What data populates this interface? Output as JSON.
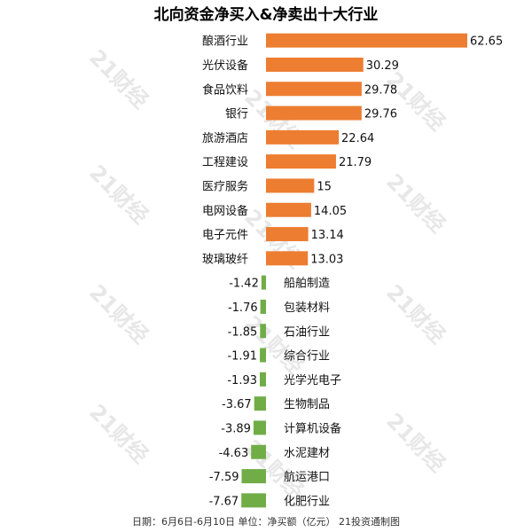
{
  "title": "北向资金净买入&净卖出十大行业",
  "footer": "日期：6月6日-6月10日 单位：净买额（亿元） 21投资通制图",
  "watermark": "21财经",
  "colors": {
    "positive": "#ed7d31",
    "negative": "#70ad47"
  },
  "chart_data": {
    "type": "bar",
    "orientation": "horizontal",
    "categories": [
      "酿酒行业",
      "光伏设备",
      "食品饮料",
      "银行",
      "旅游酒店",
      "工程建设",
      "医疗服务",
      "电网设备",
      "电子元件",
      "玻璃玻纤",
      "船舶制造",
      "包装材料",
      "石油行业",
      "综合行业",
      "光学光电子",
      "生物制品",
      "计算机设备",
      "水泥建材",
      "航运港口",
      "化肥行业"
    ],
    "values": [
      62.65,
      30.29,
      29.78,
      29.76,
      22.64,
      21.79,
      15,
      14.05,
      13.14,
      13.03,
      -1.42,
      -1.76,
      -1.85,
      -1.91,
      -1.93,
      -3.67,
      -3.89,
      -4.63,
      -7.59,
      -7.67
    ],
    "value_labels": [
      "62.65",
      "30.29",
      "29.78",
      "29.76",
      "22.64",
      "21.79",
      "15",
      "14.05",
      "13.14",
      "13.03",
      "-1.42",
      "-1.76",
      "-1.85",
      "-1.91",
      "-1.93",
      "-3.67",
      "-3.89",
      "-4.63",
      "-7.59",
      "-7.67"
    ],
    "grid": false,
    "legend": "none"
  }
}
